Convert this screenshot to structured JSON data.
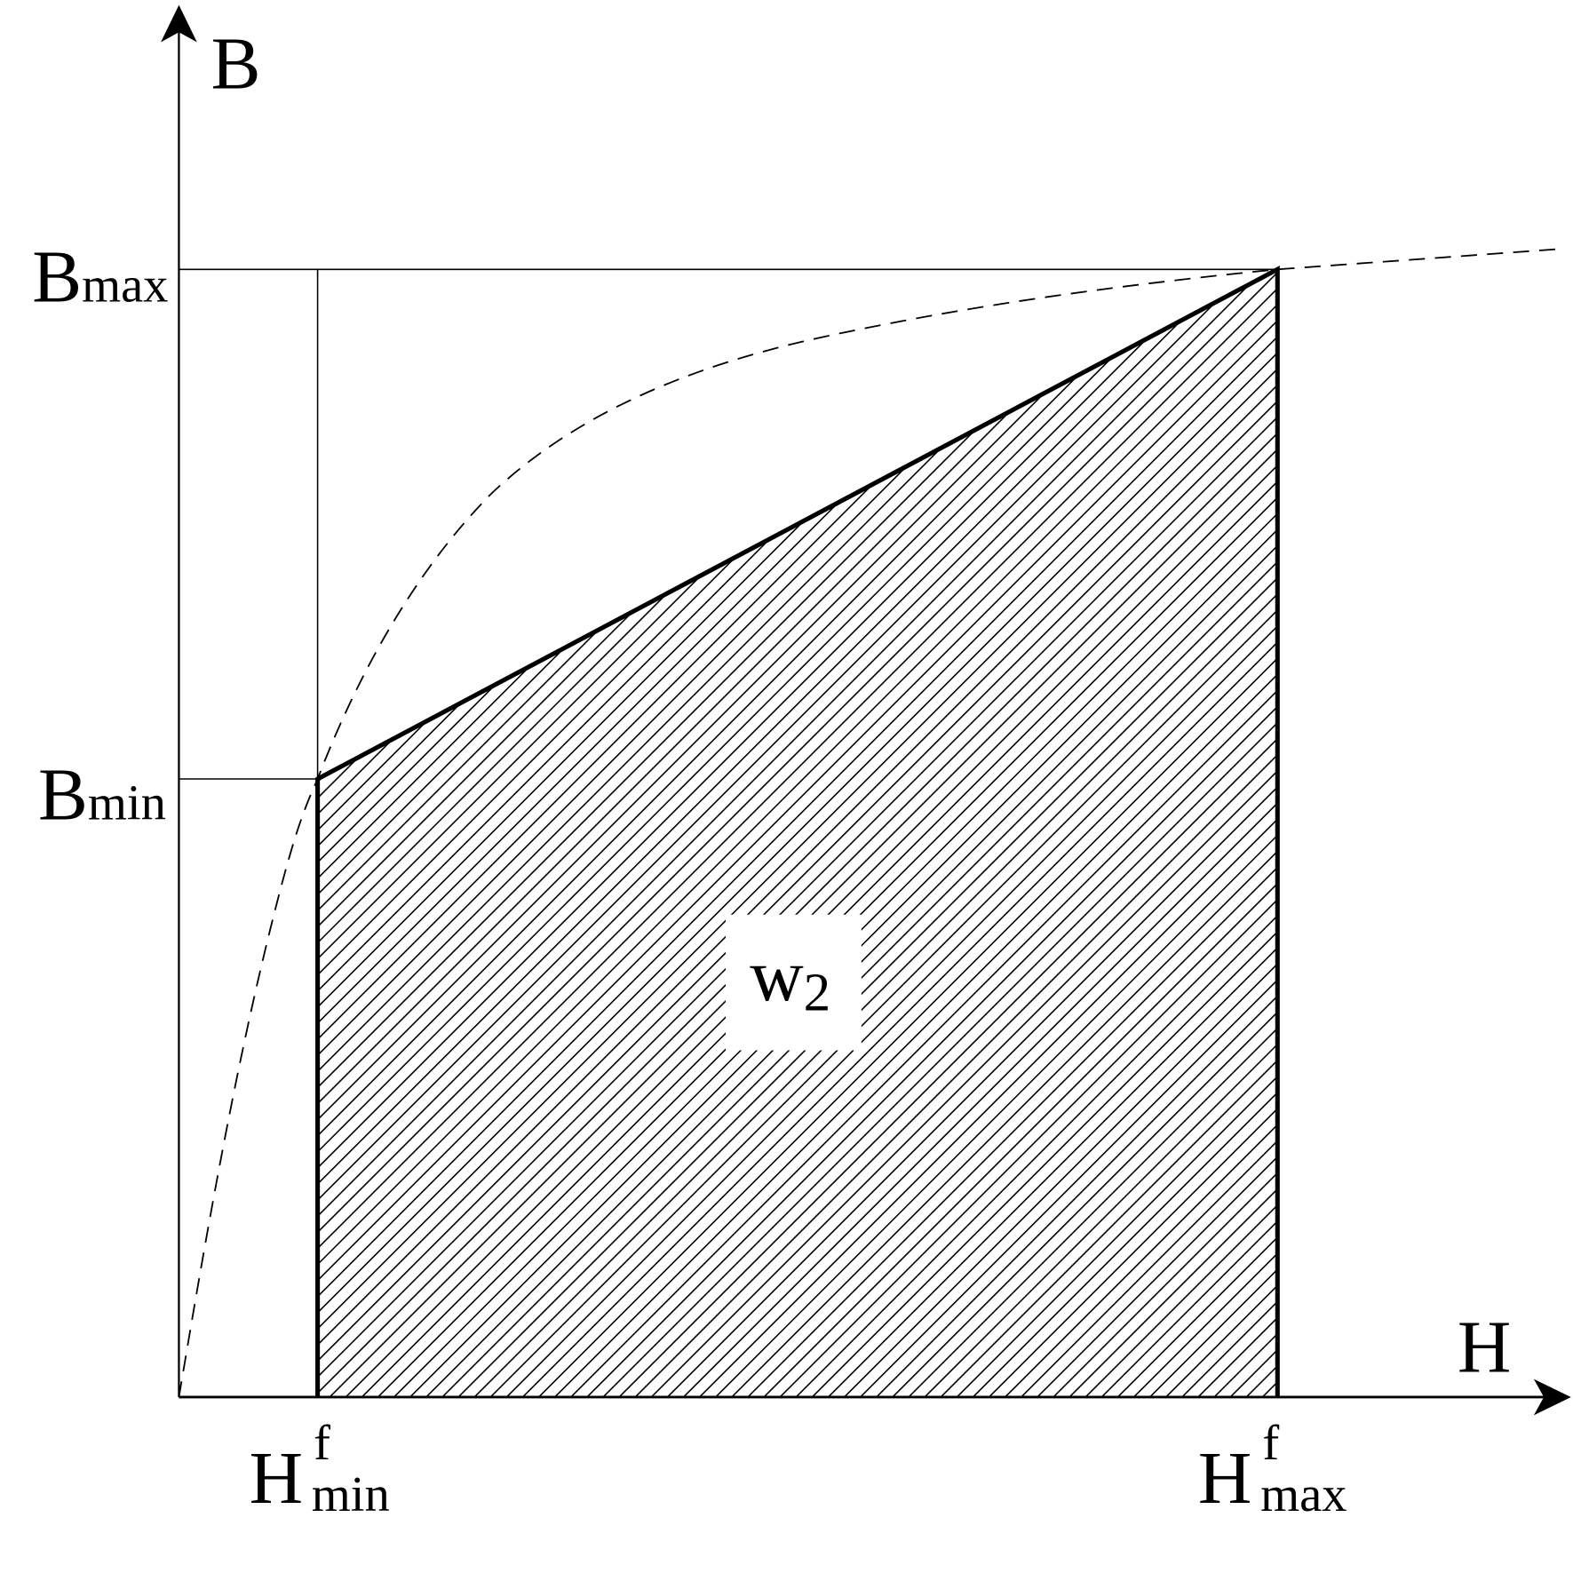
{
  "axes": {
    "y_label": "B",
    "x_label": "H"
  },
  "y_ticks": {
    "bmax": {
      "main": "B",
      "sub": "max"
    },
    "bmin": {
      "main": "B",
      "sub": "min"
    }
  },
  "x_ticks": {
    "hmin": {
      "main": "H",
      "sup": "f",
      "sub": "min"
    },
    "hmax": {
      "main": "H",
      "sup": "f",
      "sub": "max"
    }
  },
  "region": {
    "main": "w",
    "sub": "2",
    "fill": "diagonal-hatch"
  },
  "curve": {
    "style": "dashed"
  },
  "colors": {
    "ink": "#000000",
    "background": "#ffffff"
  }
}
